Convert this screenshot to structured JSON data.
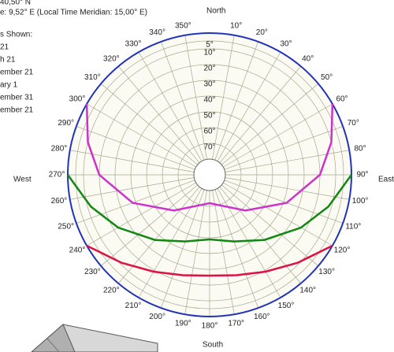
{
  "chart_data": {
    "type": "sunpath",
    "header": [
      "40,50° N",
      "e: 9,52° E (Local Time Meridian: 15,00° E)"
    ],
    "legend_title": "s Shown:",
    "compass": {
      "north": "North",
      "east": "East",
      "south": "South",
      "west": "West"
    },
    "xlim": [
      0,
      360
    ],
    "xticks": [
      {
        "value": 10,
        "label": "10°"
      },
      {
        "value": 20,
        "label": "20°"
      },
      {
        "value": 30,
        "label": "30°"
      },
      {
        "value": 40,
        "label": "40°"
      },
      {
        "value": 50,
        "label": "50°"
      },
      {
        "value": 60,
        "label": "60°"
      },
      {
        "value": 70,
        "label": "70°"
      },
      {
        "value": 80,
        "label": "80°"
      },
      {
        "value": 90,
        "label": "90°"
      },
      {
        "value": 100,
        "label": "100°"
      },
      {
        "value": 110,
        "label": "110°"
      },
      {
        "value": 120,
        "label": "120°"
      },
      {
        "value": 130,
        "label": "130°"
      },
      {
        "value": 140,
        "label": "140°"
      },
      {
        "value": 150,
        "label": "150°"
      },
      {
        "value": 160,
        "label": "160°"
      },
      {
        "value": 170,
        "label": "170°"
      },
      {
        "value": 180,
        "label": "180°"
      },
      {
        "value": 190,
        "label": "190°"
      },
      {
        "value": 200,
        "label": "200°"
      },
      {
        "value": 210,
        "label": "210°"
      },
      {
        "value": 220,
        "label": "220°"
      },
      {
        "value": 230,
        "label": "230°"
      },
      {
        "value": 240,
        "label": "240°"
      },
      {
        "value": 250,
        "label": "250°"
      },
      {
        "value": 260,
        "label": "260°"
      },
      {
        "value": 270,
        "label": "270°"
      },
      {
        "value": 280,
        "label": "280°"
      },
      {
        "value": 290,
        "label": "290°"
      },
      {
        "value": 300,
        "label": "300°"
      },
      {
        "value": 310,
        "label": "310°"
      },
      {
        "value": 320,
        "label": "320°"
      },
      {
        "value": 330,
        "label": "330°"
      },
      {
        "value": 340,
        "label": "340°"
      },
      {
        "value": 350,
        "label": "350°"
      }
    ],
    "ylim": [
      0,
      90
    ],
    "yticks": [
      {
        "value": 5,
        "label": "5°"
      },
      {
        "value": 10,
        "label": "10°"
      },
      {
        "value": 20,
        "label": "20°"
      },
      {
        "value": 30,
        "label": "30°"
      },
      {
        "value": 40,
        "label": "40°"
      },
      {
        "value": 50,
        "label": "50°"
      },
      {
        "value": 60,
        "label": "60°"
      },
      {
        "value": 70,
        "label": "70°"
      }
    ],
    "grid": true,
    "legend_entries": [
      {
        "name": "21",
        "color": "#cc33cc"
      },
      {
        "name": "h 21",
        "color": "#118811"
      },
      {
        "name": "ember 21",
        "color": "#118811"
      },
      {
        "name": "ary 1",
        "color": "#dd1144"
      },
      {
        "name": "ember 31",
        "color": "#dd1144"
      },
      {
        "name": "ember 21",
        "color": "#cc33cc"
      }
    ],
    "series": [
      {
        "color": "#cc33cc",
        "x": [
          60,
          75,
          90,
          110,
          135,
          180,
          225,
          250,
          270,
          285,
          300
        ],
        "values": [
          0,
          10,
          20,
          38,
          58,
          72,
          58,
          38,
          20,
          10,
          0
        ]
      },
      {
        "color": "#118811",
        "x": [
          90,
          105,
          120,
          140,
          160,
          180,
          200,
          220,
          240,
          255,
          270
        ],
        "values": [
          0,
          12,
          23,
          36,
          45,
          49,
          45,
          36,
          23,
          12,
          0
        ]
      },
      {
        "color": "#dd1144",
        "x": [
          120,
          135,
          150,
          165,
          180,
          195,
          210,
          225,
          240
        ],
        "values": [
          0,
          11,
          19,
          24,
          26,
          24,
          19,
          11,
          0
        ]
      }
    ]
  }
}
